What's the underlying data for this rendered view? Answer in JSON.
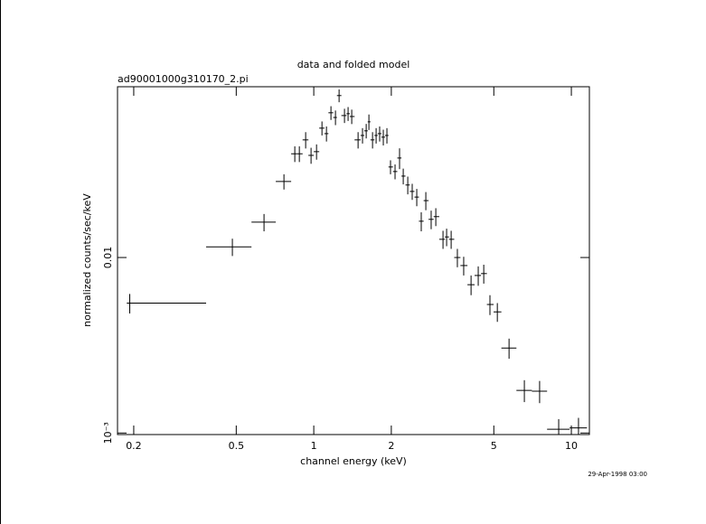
{
  "chart_data": {
    "type": "scatter",
    "title": "data and folded model",
    "subtitle": "ad90001000g310170_2.pi",
    "x_label": "channel energy (keV)",
    "y_label": "normalized counts/sec/keV",
    "timestamp": "29-Apr-1998 03:00",
    "xscale": "log",
    "yscale": "log",
    "xlim": [
      0.173,
      11.75
    ],
    "ylim": [
      0.00098,
      0.094
    ],
    "xticks": [
      0.2,
      0.5,
      1,
      2,
      5,
      10
    ],
    "yticks": [
      {
        "value": 0.001,
        "label": "10⁻³"
      },
      0.01
    ],
    "color": "#000000",
    "x": [
      0.193,
      0.483,
      0.641,
      0.766,
      0.844,
      0.879,
      0.93,
      0.976,
      1.025,
      1.076,
      1.12,
      1.166,
      1.214,
      1.254,
      1.316,
      1.359,
      1.404,
      1.486,
      1.546,
      1.598,
      1.637,
      1.691,
      1.746,
      1.802,
      1.862,
      1.923,
      1.986,
      2.068,
      2.153,
      2.225,
      2.317,
      2.411,
      2.511,
      2.614,
      2.723,
      2.856,
      2.977,
      3.175,
      3.279,
      3.415,
      3.61,
      3.82,
      4.08,
      4.35,
      4.57,
      4.83,
      5.16,
      5.73,
      6.57,
      7.53,
      8.93,
      10.66
    ],
    "x_low": [
      0.188,
      0.382,
      0.573,
      0.712,
      0.817,
      0.862,
      0.905,
      0.953,
      1.0,
      1.05,
      1.1,
      1.14,
      1.19,
      1.23,
      1.28,
      1.34,
      1.38,
      1.44,
      1.52,
      1.57,
      1.62,
      1.66,
      1.72,
      1.77,
      1.83,
      1.89,
      1.95,
      2.03,
      2.11,
      2.19,
      2.27,
      2.36,
      2.46,
      2.56,
      2.67,
      2.79,
      2.92,
      3.07,
      3.23,
      3.35,
      3.51,
      3.71,
      3.95,
      4.21,
      4.46,
      4.7,
      4.99,
      5.35,
      6.12,
      7.03,
      8.05,
      9.85
    ],
    "x_high": [
      0.382,
      0.573,
      0.712,
      0.817,
      0.862,
      0.905,
      0.953,
      1.0,
      1.05,
      1.1,
      1.14,
      1.19,
      1.23,
      1.28,
      1.34,
      1.38,
      1.44,
      1.52,
      1.57,
      1.62,
      1.66,
      1.72,
      1.77,
      1.83,
      1.89,
      1.95,
      2.03,
      2.11,
      2.19,
      2.27,
      2.36,
      2.46,
      2.56,
      2.67,
      2.79,
      2.92,
      3.07,
      3.23,
      3.35,
      3.51,
      3.71,
      3.95,
      4.21,
      4.46,
      4.7,
      4.99,
      5.35,
      6.12,
      7.03,
      8.05,
      9.85,
      11.5
    ],
    "values": [
      0.0055,
      0.0115,
      0.0159,
      0.0271,
      0.039,
      0.039,
      0.0468,
      0.0382,
      0.0401,
      0.0546,
      0.0508,
      0.0668,
      0.0628,
      0.0837,
      0.0644,
      0.066,
      0.0636,
      0.0468,
      0.0496,
      0.0527,
      0.0593,
      0.0468,
      0.0496,
      0.0508,
      0.0485,
      0.0496,
      0.0328,
      0.0309,
      0.0369,
      0.0291,
      0.0259,
      0.0238,
      0.0221,
      0.0161,
      0.0211,
      0.0165,
      0.0171,
      0.0127,
      0.0131,
      0.0127,
      0.01,
      0.009,
      0.007,
      0.0079,
      0.0081,
      0.0054,
      0.0049,
      0.00305,
      0.00175,
      0.00173,
      0.00105,
      0.00107
    ],
    "yerr": [
      0.0007,
      0.0013,
      0.0018,
      0.0027,
      0.004,
      0.004,
      0.005,
      0.004,
      0.004,
      0.005,
      0.005,
      0.006,
      0.006,
      0.007,
      0.006,
      0.006,
      0.006,
      0.005,
      0.005,
      0.005,
      0.006,
      0.005,
      0.005,
      0.005,
      0.005,
      0.005,
      0.003,
      0.003,
      0.005,
      0.003,
      0.003,
      0.0025,
      0.0025,
      0.002,
      0.0025,
      0.002,
      0.002,
      0.0015,
      0.0015,
      0.0015,
      0.0012,
      0.0011,
      0.0009,
      0.001,
      0.001,
      0.0007,
      0.0006,
      0.0004,
      0.00025,
      0.00025,
      0.00015,
      0.00015
    ]
  }
}
